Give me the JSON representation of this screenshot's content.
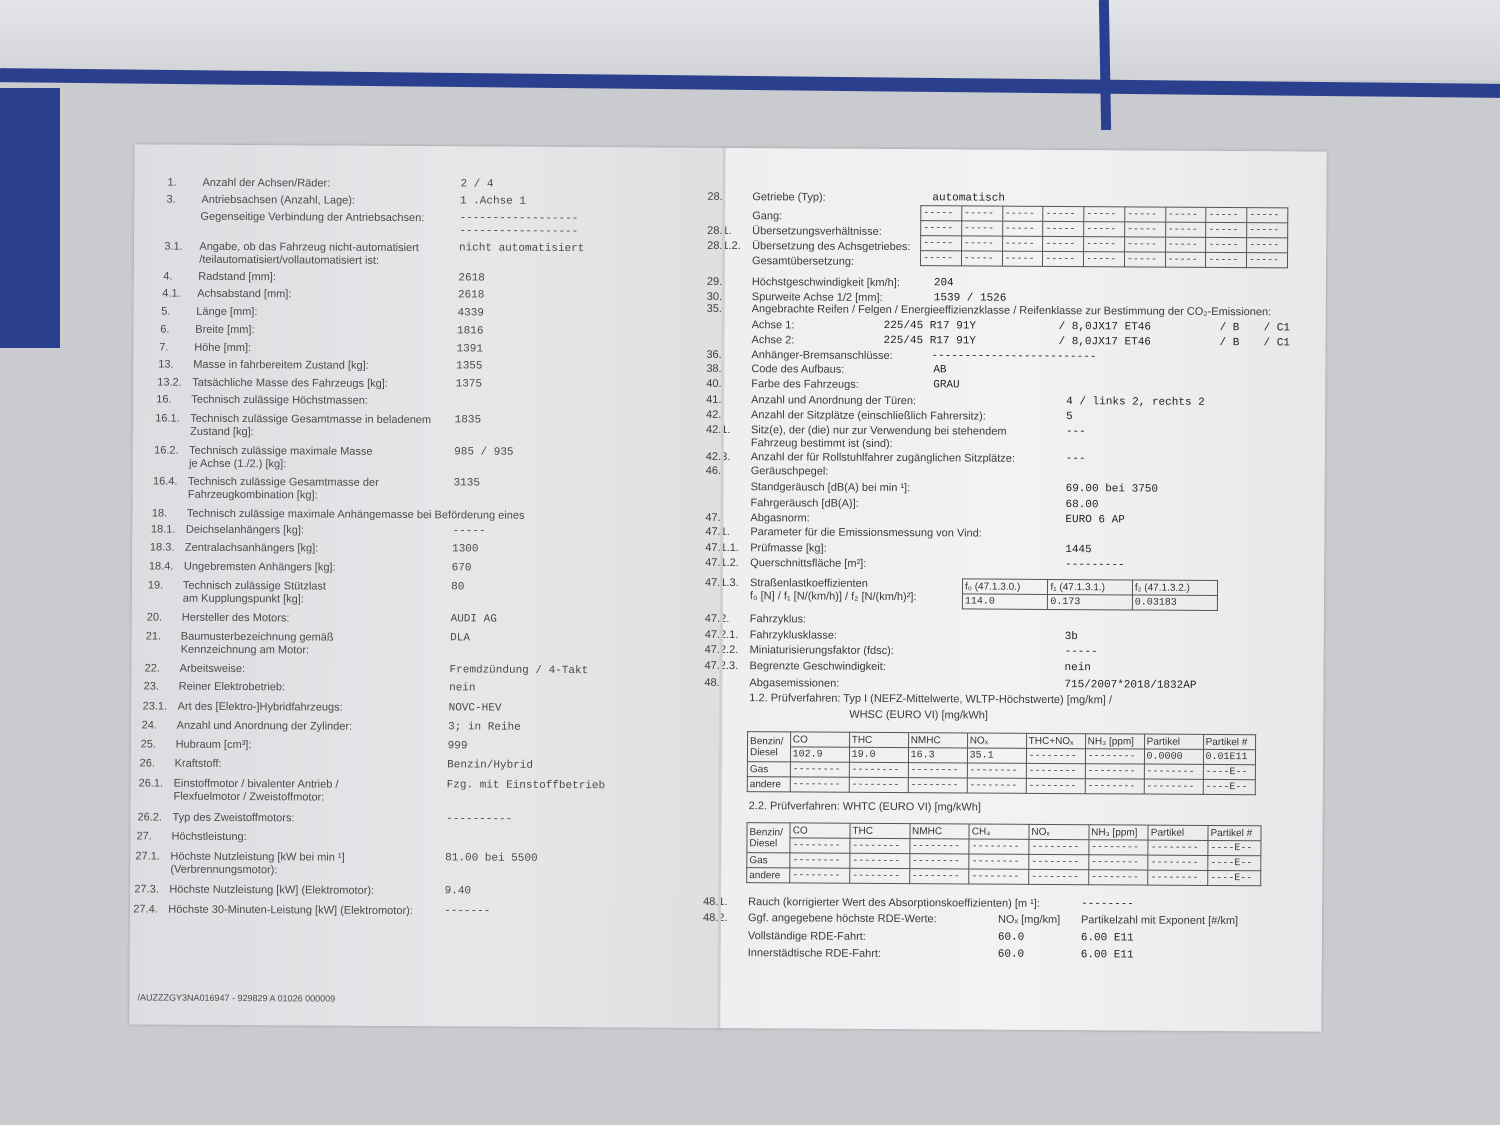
{
  "left_page": {
    "rows": [
      {
        "num": "1.",
        "label": "Anzahl der Achsen/Räder:",
        "value": "2  / 4"
      },
      {
        "num": "3.",
        "label": "Antriebsachsen (Anzahl, Lage):",
        "value": "1 .Achse 1"
      },
      {
        "num": "",
        "label": "Gegenseitige Verbindung der Antriebsachsen:",
        "value": "------------------\n------------------"
      },
      {
        "num": "3.1.",
        "label": "Angabe, ob das Fahrzeug nicht-automatisiert\n/teilautomatisiert/vollautomatisiert ist:",
        "value": "nicht automatisiert"
      },
      {
        "num": "4.",
        "label": "Radstand [mm]:",
        "value": "2618"
      },
      {
        "num": "4.1.",
        "label": "Achsabstand [mm]:",
        "value": "2618"
      },
      {
        "num": "5.",
        "label": "Länge [mm]:",
        "value": "4339"
      },
      {
        "num": "6.",
        "label": "Breite [mm]:",
        "value": "1816"
      },
      {
        "num": "7.",
        "label": "Höhe [mm]:",
        "value": "1391"
      },
      {
        "num": "13.",
        "label": "Masse in fahrbereitem Zustand [kg]:",
        "value": "1355"
      },
      {
        "num": "13.2.",
        "label": "Tatsächliche Masse des Fahrzeugs [kg]:",
        "value": "1375"
      },
      {
        "num": "16.",
        "label": "Technisch zulässige Höchstmassen:",
        "value": ""
      },
      {
        "num": "16.1.",
        "label": "Technisch zulässige Gesamtmasse in beladenem\nZustand [kg]:",
        "value": "1835"
      },
      {
        "num": "16.2.",
        "label": "Technisch zulässige maximale Masse\nje Achse (1./2.) [kg]:",
        "value": "985    / 935"
      },
      {
        "num": "16.4.",
        "label": "Technisch zulässige Gesamtmasse der\nFahrzeugkombination [kg]:",
        "value": "3135"
      },
      {
        "num": "18.",
        "label": "Technisch zulässige maximale Anhängemasse bei Beförderung eines",
        "value": ""
      },
      {
        "num": "18.1.",
        "label": "Deichselanhängers [kg]:",
        "value": "-----"
      },
      {
        "num": "18.3.",
        "label": "Zentralachsanhängers [kg]:",
        "value": "1300"
      },
      {
        "num": "18.4.",
        "label": "Ungebremsten Anhängers [kg]:",
        "value": "670"
      },
      {
        "num": "19.",
        "label": "Technisch zulässige Stützlast\nam Kupplungspunkt [kg]:",
        "value": "80"
      },
      {
        "num": "20.",
        "label": "Hersteller des Motors:",
        "value": "AUDI AG"
      },
      {
        "num": "21.",
        "label": "Baumusterbezeichnung gemäß\nKennzeichnung am Motor:",
        "value": "DLA"
      },
      {
        "num": "22.",
        "label": "Arbeitsweise:",
        "value": "Fremdzündung / 4-Takt"
      },
      {
        "num": "23.",
        "label": "Reiner Elektrobetrieb:",
        "value": "nein"
      },
      {
        "num": "23.1.",
        "label": "Art des [Elektro-]Hybridfahrzeugs:",
        "value": "NOVC-HEV"
      },
      {
        "num": "24.",
        "label": "Anzahl und Anordnung der Zylinder:",
        "value": "3; in Reihe"
      },
      {
        "num": "25.",
        "label": "Hubraum [cm³]:",
        "value": "999"
      },
      {
        "num": "26.",
        "label": "Kraftstoff:",
        "value": "Benzin/Hybrid"
      },
      {
        "num": "26.1.",
        "label": "Einstoffmotor / bivalenter Antrieb /\nFlexfuelmotor / Zweistoffmotor:",
        "value": "Fzg. mit Einstoffbetrieb"
      },
      {
        "num": "26.2.",
        "label": "Typ des Zweistoffmotors:",
        "value": "----------"
      },
      {
        "num": "27.",
        "label": "Höchstleistung:",
        "value": ""
      },
      {
        "num": "27.1.",
        "label": "Höchste Nutzleistung [kW bei min ¹]\n(Verbrennungsmotor):",
        "value": "81.00   bei 5500"
      },
      {
        "num": "27.3.",
        "label": "Höchste Nutzleistung [kW] (Elektromotor):",
        "value": "9.40"
      },
      {
        "num": "27.4.",
        "label": "Höchste 30-Minuten-Leistung [kW] (Elektromotor):",
        "value": "-------"
      }
    ],
    "footer": "/AUZZZGY3NA016947 - 929829 A 01026     000009"
  },
  "right_page": {
    "rows": [
      {
        "num": "28.",
        "label": "Getriebe (Typ):",
        "value": "automatisch"
      },
      {
        "num": "",
        "label": "Gang:",
        "value": ""
      },
      {
        "num": "28.1.",
        "label": "Übersetzungsverhältnisse:",
        "value": ""
      },
      {
        "num": "28.1.2.",
        "label": "Übersetzung des Achsgetriebes:",
        "value": ""
      },
      {
        "num": "",
        "label": "Gesamtübersetzung:",
        "value": ""
      },
      {
        "num": "29.",
        "label": "Höchstgeschwindigkeit [km/h]:",
        "value": "204"
      },
      {
        "num": "30.",
        "label": "Spurweite Achse 1/2 [mm]:",
        "value": "1539  / 1526"
      },
      {
        "num": "35.",
        "label": "Angebrachte Reifen / Felgen / Energieeffizienzklasse / Reifenklasse zur Bestimmung der CO₂-Emissionen:",
        "value": ""
      },
      {
        "num": "",
        "label": "Achse 1:",
        "value": "225/45 R17 91Y",
        "extra": [
          "/ 8,0JX17 ET46",
          "/ B",
          "/ C1"
        ]
      },
      {
        "num": "",
        "label": "Achse 2:",
        "value": "225/45 R17 91Y",
        "extra": [
          "/ 8,0JX17 ET46",
          "/ B",
          "/ C1"
        ]
      },
      {
        "num": "36.",
        "label": "Anhänger-Bremsanschlüsse:",
        "value": "-------------------------"
      },
      {
        "num": "38.",
        "label": "Code des Aufbaus:",
        "value": "AB"
      },
      {
        "num": "40.",
        "label": "Farbe des Fahrzeugs:",
        "value": "GRAU"
      },
      {
        "num": "41.",
        "label": "Anzahl und Anordnung der Türen:",
        "value": "4   / links 2, rechts 2"
      },
      {
        "num": "42.",
        "label": "Anzahl der Sitzplätze (einschließlich Fahrersitz):",
        "value": "5"
      },
      {
        "num": "42.1.",
        "label": "Sitz(e), der (die) nur zur Verwendung bei stehendem\nFahrzeug bestimmt ist (sind):",
        "value": "---"
      },
      {
        "num": "42.3.",
        "label": "Anzahl der für Rollstuhlfahrer zugänglichen Sitzplätze:",
        "value": "---"
      },
      {
        "num": "46.",
        "label": "Geräuschpegel:",
        "value": ""
      },
      {
        "num": "",
        "label": "Standgeräusch [dB(A) bei min ¹]:",
        "value": "69.00  bei 3750"
      },
      {
        "num": "",
        "label": "Fahrgeräusch [dB(A)]:",
        "value": "68.00"
      },
      {
        "num": "47.",
        "label": "Abgasnorm:",
        "value": "EURO 6 AP"
      },
      {
        "num": "47.1.",
        "label": "Parameter für die Emissionsmessung von Vind:",
        "value": ""
      },
      {
        "num": "47.1.1.",
        "label": "Prüfmasse [kg]:",
        "value": "1445"
      },
      {
        "num": "47.1.2.",
        "label": "Querschnittsfläche [m²]:",
        "value": "---------"
      },
      {
        "num": "47.1.3.",
        "label": "Straßenlastkoeffizienten\nf₀ [N] / f₁ [N/(km/h)] / f₂ [N/(km/h)²]:",
        "value": ""
      },
      {
        "num": "47.2.",
        "label": "Fahrzyklus:",
        "value": ""
      },
      {
        "num": "47.2.1.",
        "label": "Fahrzyklusklasse:",
        "value": "3b"
      },
      {
        "num": "47.2.2.",
        "label": "Miniaturisierungsfaktor (fdsc):",
        "value": "-----"
      },
      {
        "num": "47.2.3.",
        "label": "Begrenzte Geschwindigkeit:",
        "value": "nein"
      },
      {
        "num": "48.",
        "label": "Abgasemissionen:",
        "value": "715/2007*2018/1832AP"
      },
      {
        "num": "",
        "label": "1.2. Prüfverfahren:  Typ I (NEFZ-Mittelwerte, WLTP-Höchstwerte) [mg/km] /",
        "value": ""
      },
      {
        "num": "",
        "label": "WHSC (EURO VI) [mg/kWh]",
        "value": ""
      },
      {
        "num": "",
        "label": "2.2. Prüfverfahren:  WHTC (EURO VI) [mg/kWh]",
        "value": ""
      },
      {
        "num": "48.1.",
        "label": "Rauch (korrigierter Wert des Absorptionskoeffizienten) [m ¹]:",
        "value": "--------"
      },
      {
        "num": "48.2.",
        "label": "Ggf. angegebene höchste RDE-Werte:",
        "value": "NOₓ [mg/km]",
        "extra": [
          "Partikelzahl mit Exponent [#/km]"
        ]
      },
      {
        "num": "",
        "label": "Vollständige RDE-Fahrt:",
        "value": "60.0",
        "extra": [
          "6.00 E11"
        ]
      },
      {
        "num": "",
        "label": "Innerstädtische RDE-Fahrt:",
        "value": "60.0",
        "extra": [
          "6.00 E11"
        ]
      }
    ],
    "gear_table": {
      "cell": "-----",
      "rows": 4,
      "cols": 9
    },
    "road_load_table": {
      "headers": [
        "f₀ (47.1.3.0.)",
        "f₁ (47.1.3.1.)",
        "f₂ (47.1.3.2.)"
      ],
      "values": [
        "114.0",
        "0.173",
        "0.03183"
      ]
    },
    "emissions_type1": {
      "row_label": "Benzin/\nDiesel",
      "headers": [
        "CO",
        "THC",
        "NMHC",
        "NOₓ",
        "THC+NOₓ",
        "NH₃ [ppm]",
        "Partikel",
        "Partikel #"
      ],
      "rows": [
        {
          "label": "",
          "values": [
            "102.9",
            "19.0",
            "16.3",
            "35.1",
            "--------",
            "--------",
            "0.0000",
            "0.01E11"
          ]
        },
        {
          "label": "Gas",
          "values": [
            "--------",
            "--------",
            "--------",
            "--------",
            "--------",
            "--------",
            "--------",
            "----E--"
          ]
        },
        {
          "label": "andere",
          "values": [
            "--------",
            "--------",
            "--------",
            "--------",
            "--------",
            "--------",
            "--------",
            "----E--"
          ]
        }
      ]
    },
    "emissions_whtc": {
      "row_label": "Benzin/\nDiesel",
      "headers": [
        "CO",
        "THC",
        "NMHC",
        "CH₄",
        "NOₓ",
        "NH₃ [ppm]",
        "Partikel",
        "Partikel #"
      ],
      "rows": [
        {
          "label": "",
          "values": [
            "--------",
            "--------",
            "--------",
            "--------",
            "--------",
            "--------",
            "--------",
            "----E--"
          ]
        },
        {
          "label": "Gas",
          "values": [
            "--------",
            "--------",
            "--------",
            "--------",
            "--------",
            "--------",
            "--------",
            "----E--"
          ]
        },
        {
          "label": "andere",
          "values": [
            "--------",
            "--------",
            "--------",
            "--------",
            "--------",
            "--------",
            "--------",
            "----E--"
          ]
        }
      ]
    }
  }
}
